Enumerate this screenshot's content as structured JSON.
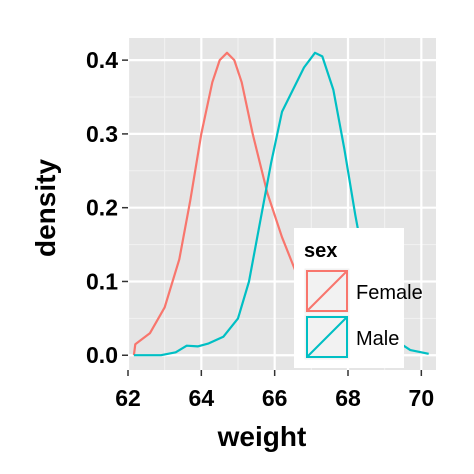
{
  "chart_data": {
    "type": "line",
    "xlabel": "weight",
    "ylabel": "density",
    "xlim": [
      62,
      70.4
    ],
    "ylim": [
      -0.02,
      0.43
    ],
    "x_ticks": [
      62,
      64,
      66,
      68,
      70
    ],
    "x_tick_labels": [
      "62",
      "64",
      "66",
      "68",
      "70"
    ],
    "y_ticks": [
      0.0,
      0.1,
      0.2,
      0.3,
      0.4
    ],
    "y_tick_labels": [
      "0.0",
      "0.1",
      "0.2",
      "0.3",
      "0.4"
    ],
    "grid": true,
    "background": "#E5E5E5",
    "legend": {
      "title": "sex",
      "placement": "bottom-right (inside)"
    },
    "series": [
      {
        "name": "Female",
        "color": "#F8766D",
        "points": [
          [
            62.16,
            0.0
          ],
          [
            62.2,
            0.015
          ],
          [
            62.6,
            0.03
          ],
          [
            63.0,
            0.065
          ],
          [
            63.4,
            0.13
          ],
          [
            63.7,
            0.21
          ],
          [
            64.0,
            0.3
          ],
          [
            64.3,
            0.37
          ],
          [
            64.5,
            0.4
          ],
          [
            64.7,
            0.41
          ],
          [
            64.9,
            0.4
          ],
          [
            65.1,
            0.37
          ],
          [
            65.4,
            0.3
          ],
          [
            65.8,
            0.22
          ],
          [
            66.2,
            0.16
          ],
          [
            66.6,
            0.11
          ],
          [
            67.0,
            0.07
          ],
          [
            67.4,
            0.03
          ],
          [
            67.7,
            0.006
          ],
          [
            67.9,
            0.0
          ]
        ]
      },
      {
        "name": "Male",
        "color": "#00BFC4",
        "points": [
          [
            62.16,
            0.0
          ],
          [
            62.9,
            0.0
          ],
          [
            63.3,
            0.004
          ],
          [
            63.6,
            0.013
          ],
          [
            63.9,
            0.012
          ],
          [
            64.2,
            0.016
          ],
          [
            64.6,
            0.025
          ],
          [
            65.0,
            0.05
          ],
          [
            65.3,
            0.1
          ],
          [
            65.6,
            0.18
          ],
          [
            65.9,
            0.26
          ],
          [
            66.2,
            0.33
          ],
          [
            66.5,
            0.36
          ],
          [
            66.8,
            0.39
          ],
          [
            67.1,
            0.41
          ],
          [
            67.3,
            0.405
          ],
          [
            67.6,
            0.36
          ],
          [
            67.9,
            0.28
          ],
          [
            68.2,
            0.19
          ],
          [
            68.5,
            0.11
          ],
          [
            68.9,
            0.05
          ],
          [
            69.3,
            0.02
          ],
          [
            69.7,
            0.007
          ],
          [
            70.2,
            0.002
          ]
        ]
      }
    ]
  }
}
